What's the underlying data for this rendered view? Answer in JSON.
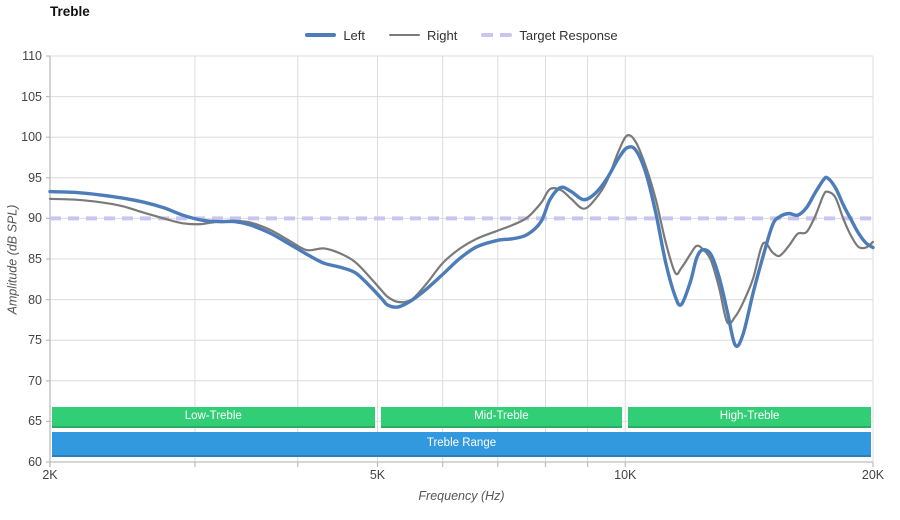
{
  "page": {
    "title": "Treble"
  },
  "legend": [
    {
      "id": "left",
      "label": "Left",
      "color": "#4d7db9",
      "style": "solid",
      "thickness": 3.5
    },
    {
      "id": "right",
      "label": "Right",
      "color": "#7a7a7a",
      "style": "solid",
      "thickness": 2
    },
    {
      "id": "target",
      "label": "Target Response",
      "color": "#c9c5f1",
      "style": "dashed",
      "thickness": 4
    }
  ],
  "chart_data": {
    "type": "line",
    "title": "Treble",
    "xlabel": "Frequency (Hz)",
    "ylabel": "Amplitude (dB SPL)",
    "x_scale": "log",
    "xlim": [
      2000,
      20000
    ],
    "ylim": [
      60,
      110
    ],
    "grid": true,
    "legend_position": "top-center",
    "x_ticks": [
      {
        "value": 2000,
        "label": "2K"
      },
      {
        "value": 5000,
        "label": "5K"
      },
      {
        "value": 10000,
        "label": "10K"
      },
      {
        "value": 20000,
        "label": "20K"
      }
    ],
    "x_gridlines": [
      3000,
      4000,
      5000,
      6000,
      7000,
      8000,
      9000,
      10000,
      20000
    ],
    "y_ticks": [
      60,
      65,
      70,
      75,
      80,
      85,
      90,
      95,
      100,
      105,
      110
    ],
    "x": [
      2000,
      2150,
      2300,
      2450,
      2600,
      2750,
      2900,
      3050,
      3200,
      3350,
      3500,
      3700,
      3900,
      4100,
      4300,
      4500,
      4700,
      4900,
      5050,
      5150,
      5300,
      5500,
      5750,
      6000,
      6300,
      6600,
      7000,
      7300,
      7600,
      7900,
      8100,
      8350,
      8600,
      8900,
      9200,
      9500,
      9800,
      10050,
      10300,
      10600,
      10900,
      11200,
      11500,
      11700,
      12000,
      12200,
      12400,
      12700,
      13000,
      13300,
      13600,
      13900,
      14300,
      14700,
      15100,
      15400,
      15800,
      16200,
      16600,
      17000,
      17400,
      17600,
      18000,
      18400,
      18800,
      19200,
      19600,
      20000
    ],
    "series": [
      {
        "name": "Left",
        "color": "#4d7db9",
        "width": 3.4,
        "values": [
          93.3,
          93.2,
          92.9,
          92.5,
          92.0,
          91.3,
          90.4,
          89.8,
          89.6,
          89.6,
          89.2,
          88.2,
          86.9,
          85.6,
          84.5,
          84.0,
          83.3,
          81.6,
          80.2,
          79.3,
          79.1,
          79.9,
          81.4,
          83.1,
          85.1,
          86.5,
          87.3,
          87.5,
          88.0,
          89.6,
          92.3,
          93.8,
          93.3,
          92.3,
          93.1,
          94.9,
          97.3,
          98.7,
          98.4,
          95.5,
          90.5,
          84.5,
          80.4,
          79.4,
          82.2,
          85.0,
          86.1,
          85.6,
          82.8,
          78.6,
          74.4,
          75.7,
          80.8,
          85.3,
          89.2,
          90.2,
          90.6,
          90.4,
          91.3,
          93.1,
          94.7,
          95.0,
          93.8,
          91.7,
          89.9,
          88.2,
          87.0,
          86.4
        ]
      },
      {
        "name": "Right",
        "color": "#7a7a7a",
        "width": 2.2,
        "values": [
          92.4,
          92.3,
          92.0,
          91.5,
          90.7,
          90.0,
          89.4,
          89.3,
          89.6,
          89.7,
          89.5,
          88.6,
          87.3,
          86.1,
          86.3,
          85.7,
          84.6,
          82.7,
          81.2,
          80.3,
          79.7,
          80.0,
          82.1,
          84.5,
          86.3,
          87.5,
          88.5,
          89.2,
          90.1,
          91.9,
          93.6,
          93.5,
          92.4,
          91.2,
          92.4,
          94.6,
          98.1,
          100.2,
          99.4,
          96.3,
          92.2,
          87.0,
          83.3,
          83.9,
          85.6,
          86.6,
          86.3,
          84.9,
          81.5,
          77.2,
          77.9,
          79.6,
          82.6,
          86.9,
          85.8,
          85.4,
          86.6,
          88.1,
          88.3,
          90.2,
          92.8,
          93.3,
          92.6,
          90.0,
          87.9,
          86.5,
          86.4,
          87.1
        ]
      }
    ],
    "target_response": {
      "label": "Target Response",
      "value": 90,
      "color": "#c9c5f1"
    },
    "bands": {
      "text_color": "#ffffff",
      "green_color": "#32ce76",
      "range_color": "#3399de",
      "green_items": [
        {
          "label": "Low-Treble",
          "from": 2000,
          "to": 5000
        },
        {
          "label": "Mid-Treble",
          "from": 5000,
          "to": 10000
        },
        {
          "label": "High-Treble",
          "from": 10000,
          "to": 20000
        }
      ],
      "range_item": {
        "label": "Treble Range",
        "from": 2000,
        "to": 20000
      }
    },
    "colors": {
      "grid": "#dcdcdc",
      "spine": "#bdbdbd",
      "tick_text": "#444444"
    }
  }
}
